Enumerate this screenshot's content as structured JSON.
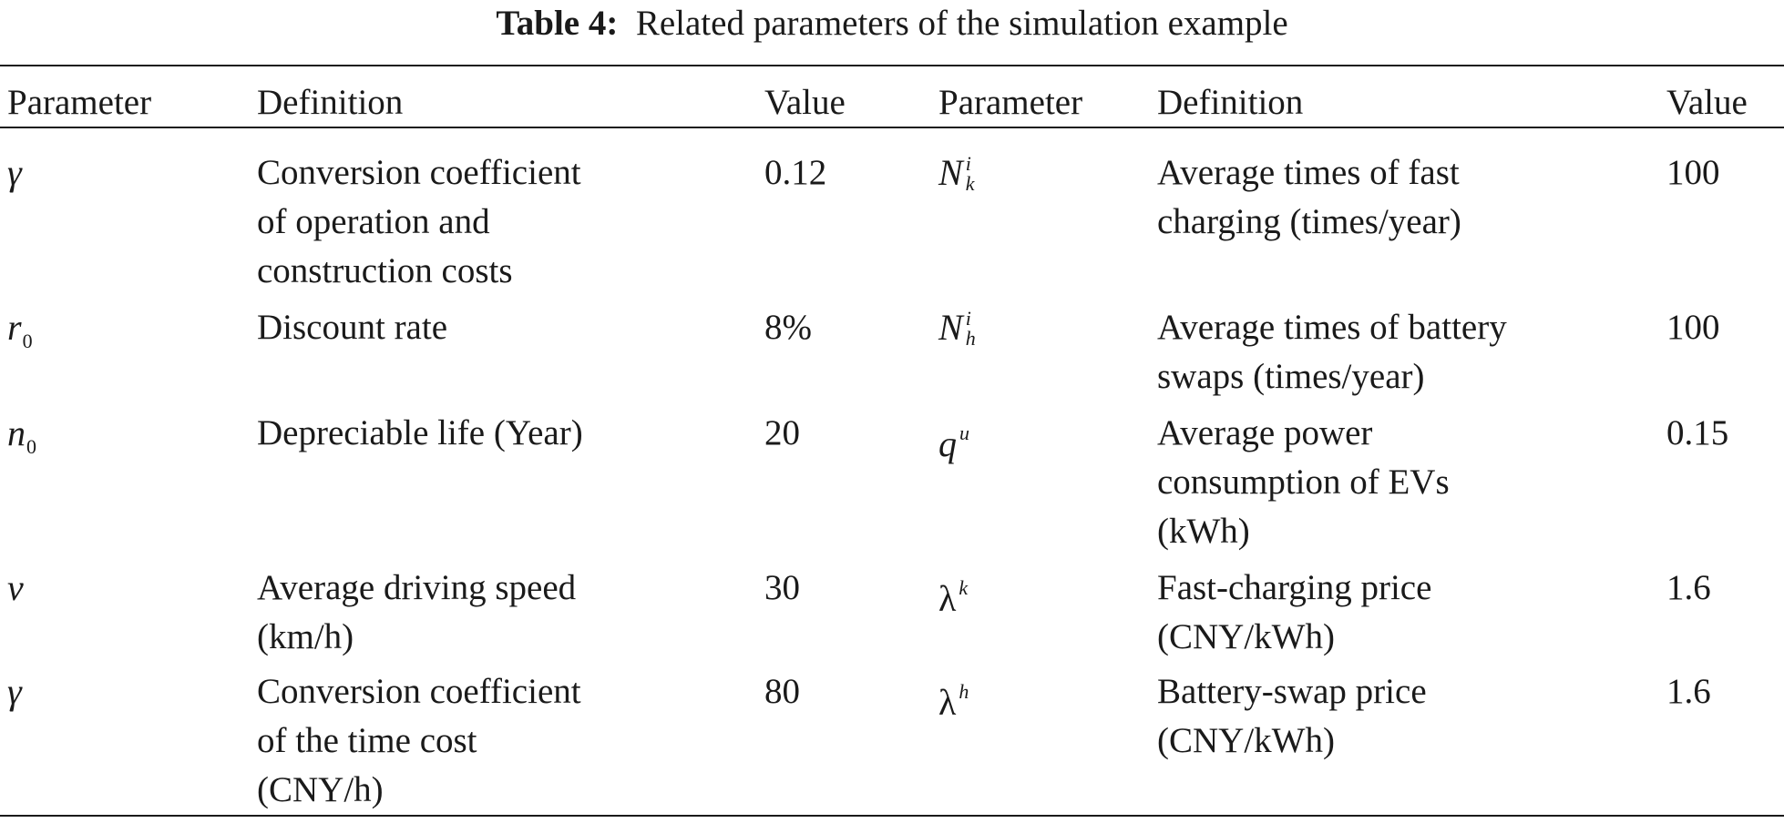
{
  "caption": {
    "label": "Table 4:",
    "text": "Related parameters of the simulation example"
  },
  "headers": [
    "Parameter",
    "Definition",
    "Value",
    "Parameter",
    "Definition",
    "Value"
  ],
  "rows": [
    {
      "param_left": {
        "main": "γ",
        "sup": "",
        "sub": ""
      },
      "def_left": [
        "Conversion coefficient",
        "of operation and",
        "construction costs"
      ],
      "value_left": "0.12",
      "param_right": {
        "main": "N",
        "sup": "i",
        "sub": "k"
      },
      "def_right": [
        "Average times of fast",
        "charging (times/year)"
      ],
      "value_right": "100"
    },
    {
      "param_left": {
        "main": "r",
        "sup": "",
        "sub": "0"
      },
      "def_left": [
        "Discount rate"
      ],
      "value_left": "8%",
      "param_right": {
        "main": "N",
        "sup": "i",
        "sub": "h"
      },
      "def_right": [
        "Average times of battery",
        "swaps (times/year)"
      ],
      "value_right": "100"
    },
    {
      "param_left": {
        "main": "n",
        "sup": "",
        "sub": "0"
      },
      "def_left": [
        "Depreciable life (Year)"
      ],
      "value_left": "20",
      "param_right": {
        "main": "q",
        "sup": "u",
        "sub": ""
      },
      "def_right": [
        "Average power",
        "consumption of EVs",
        "(kWh)"
      ],
      "value_right": "0.15"
    },
    {
      "param_left": {
        "main": "v",
        "sup": "",
        "sub": ""
      },
      "def_left": [
        "Average driving speed",
        "(km/h)"
      ],
      "value_left": "30",
      "param_right": {
        "main": "λ",
        "sup": "k",
        "sub": ""
      },
      "def_right": [
        "Fast-charging price",
        "(CNY/kWh)"
      ],
      "value_right": "1.6"
    },
    {
      "param_left": {
        "main": "γ",
        "sup": "",
        "sub": ""
      },
      "def_left": [
        "Conversion coefficient",
        "of the time cost",
        "(CNY/h)"
      ],
      "value_left": "80",
      "param_right": {
        "main": "λ",
        "sup": "h",
        "sub": ""
      },
      "def_right": [
        "Battery-swap price",
        "(CNY/kWh)"
      ],
      "value_right": "1.6"
    }
  ]
}
